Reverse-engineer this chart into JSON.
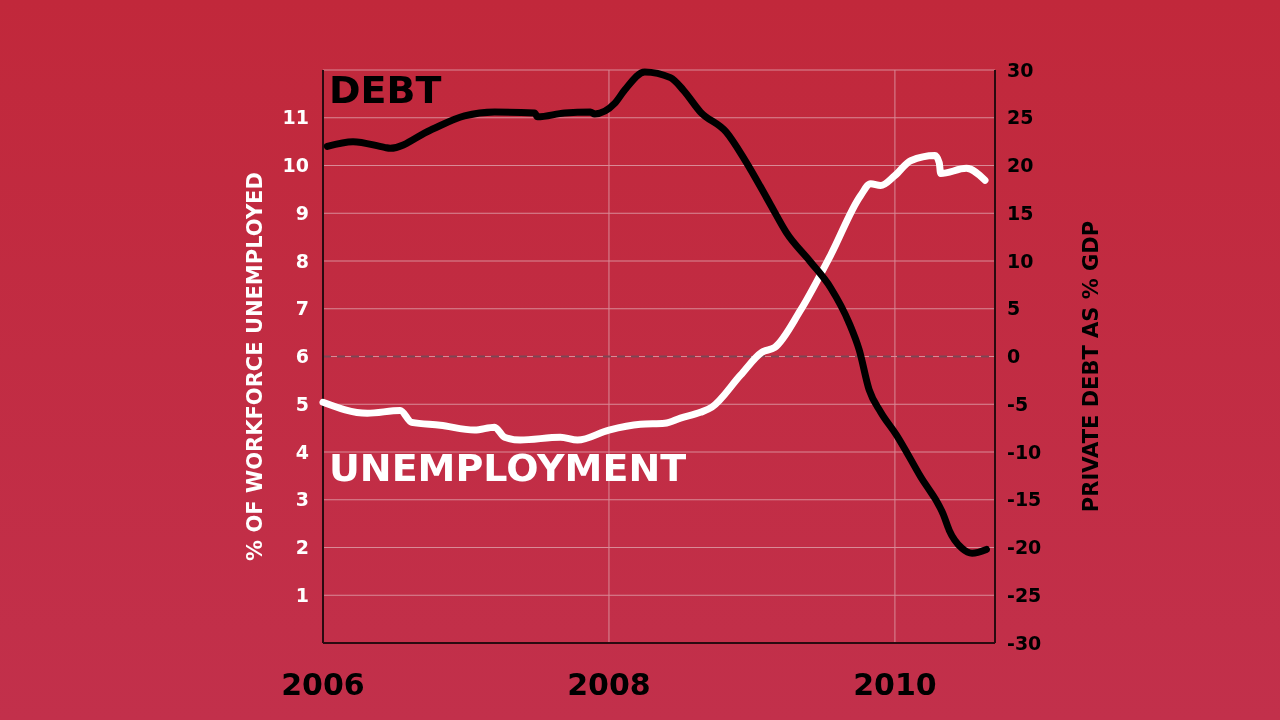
{
  "chart_data": {
    "type": "line",
    "ylabel": "% OF WORKFORCE UNEMPLOYED",
    "y2label": "PRIVATE DEBT AS % GDP",
    "xlim": [
      2006,
      2010.7
    ],
    "xticks": [
      2006,
      2008,
      2010
    ],
    "ylim": [
      0,
      12
    ],
    "yticks": [
      1,
      2,
      3,
      4,
      5,
      6,
      7,
      8,
      9,
      10,
      11
    ],
    "y2lim": [
      -30,
      30
    ],
    "y2ticks": [
      -30,
      -25,
      -20,
      -15,
      -10,
      -5,
      0,
      5,
      10,
      15,
      20,
      25,
      30
    ],
    "grid": true,
    "marker": "none",
    "line_style": "solid",
    "ref_lines": [
      {
        "axis": "y2",
        "value": 0,
        "color": "#7d4654",
        "line_style": "dashed"
      }
    ],
    "series": [
      {
        "name": "UNEMPLOYMENT",
        "color": "#ffffff",
        "x": [
          2006.0,
          2006.31,
          2006.54,
          2006.62,
          2006.82,
          2007.06,
          2007.2,
          2007.27,
          2007.38,
          2007.66,
          2007.78,
          2008.0,
          2008.22,
          2008.39,
          2008.5,
          2008.64,
          2008.72,
          2008.92,
          2009.07,
          2009.16,
          2009.34,
          2009.55,
          2009.76,
          2009.83,
          2009.9,
          2010.0,
          2010.11,
          2010.28,
          2010.31,
          2010.32,
          2010.5,
          2010.63
        ],
        "values": [
          5.04,
          4.81,
          4.87,
          4.62,
          4.56,
          4.46,
          4.52,
          4.31,
          4.25,
          4.31,
          4.25,
          4.46,
          4.58,
          4.6,
          4.71,
          4.83,
          4.94,
          5.61,
          6.09,
          6.19,
          6.97,
          8.12,
          9.37,
          9.62,
          9.58,
          9.79,
          10.1,
          10.21,
          10.06,
          9.83,
          9.94,
          9.69
        ]
      },
      {
        "name": "DEBT",
        "color": "#000000",
        "axis": "y2",
        "x": [
          2006.03,
          2006.21,
          2006.43,
          2006.47,
          2006.75,
          2006.99,
          2007.2,
          2007.48,
          2007.5,
          2007.69,
          2007.87,
          2007.9,
          2008.04,
          2008.11,
          2008.25,
          2008.43,
          2008.52,
          2008.64,
          2008.82,
          2008.95,
          2009.13,
          2009.24,
          2009.41,
          2009.55,
          2009.68,
          2009.75,
          2009.82,
          2009.9,
          2010.01,
          2010.18,
          2010.34,
          2010.38,
          2010.47,
          2010.54,
          2010.64
        ],
        "values": [
          22.0,
          22.5,
          21.9,
          21.8,
          23.7,
          25.2,
          25.6,
          25.5,
          25.1,
          25.5,
          25.6,
          25.4,
          26.5,
          27.9,
          29.8,
          29.2,
          27.9,
          25.6,
          23.5,
          20.6,
          15.9,
          13.0,
          9.9,
          7.2,
          3.5,
          0.7,
          -3.5,
          -5.8,
          -8.2,
          -12.6,
          -16.6,
          -18.2,
          -20.1,
          -20.6,
          -20.2
        ]
      }
    ]
  }
}
